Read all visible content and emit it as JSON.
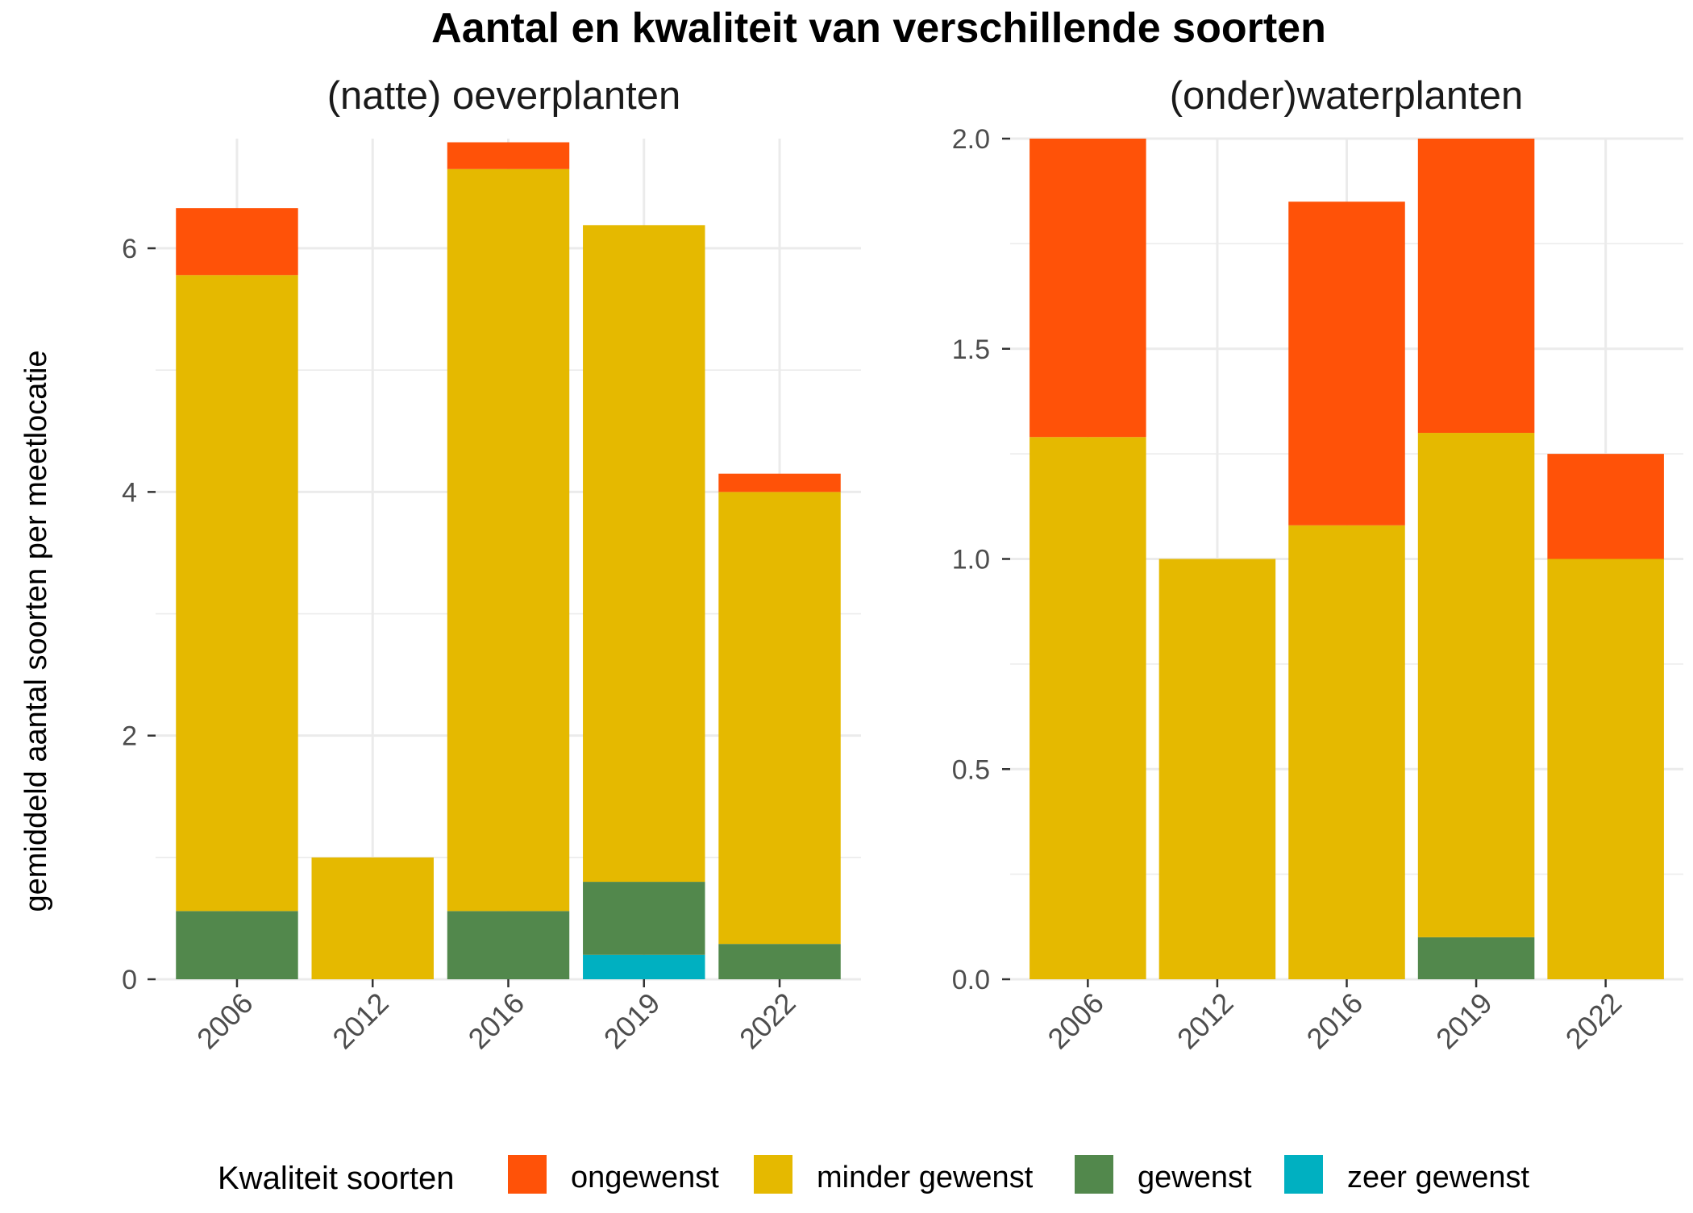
{
  "title": "Aantal en kwaliteit van verschillende soorten",
  "ylabel": "gemiddeld aantal soorten per meetlocatie",
  "legend": {
    "title": "Kwaliteit soorten",
    "position": "bottom",
    "items": [
      {
        "label": "ongewenst",
        "color": "#FF5208"
      },
      {
        "label": "minder gewenst",
        "color": "#E5B900"
      },
      {
        "label": "gewenst",
        "color": "#52884C"
      },
      {
        "label": "zeer gewenst",
        "color": "#00B0C1"
      }
    ]
  },
  "chart_data": [
    {
      "type": "bar",
      "stacked": true,
      "title": "(natte) oeverplanten",
      "categories": [
        "2006",
        "2012",
        "2016",
        "2019",
        "2022"
      ],
      "ylim": [
        0,
        6.9
      ],
      "yticks": [
        0,
        2,
        4,
        6
      ],
      "ytick_labels": [
        "0",
        "2",
        "4",
        "6"
      ],
      "grid": true,
      "series": [
        {
          "name": "zeer gewenst",
          "values": [
            0,
            0,
            0,
            0.2,
            0
          ]
        },
        {
          "name": "gewenst",
          "values": [
            0.56,
            0,
            0.56,
            0.6,
            0.29
          ]
        },
        {
          "name": "minder gewenst",
          "values": [
            5.22,
            1.0,
            6.09,
            5.39,
            3.71
          ]
        },
        {
          "name": "ongewenst",
          "values": [
            0.55,
            0,
            0.22,
            0,
            0.15
          ]
        }
      ]
    },
    {
      "type": "bar",
      "stacked": true,
      "title": "(onder)waterplanten",
      "categories": [
        "2006",
        "2012",
        "2016",
        "2019",
        "2022"
      ],
      "ylim": [
        0,
        2.0
      ],
      "yticks": [
        0,
        0.5,
        1.0,
        1.5,
        2.0
      ],
      "ytick_labels": [
        "0.0",
        "0.5",
        "1.0",
        "1.5",
        "2.0"
      ],
      "grid": true,
      "series": [
        {
          "name": "zeer gewenst",
          "values": [
            0,
            0,
            0,
            0,
            0
          ]
        },
        {
          "name": "gewenst",
          "values": [
            0,
            0,
            0,
            0.1,
            0
          ]
        },
        {
          "name": "minder gewenst",
          "values": [
            1.29,
            1.0,
            1.08,
            1.2,
            1.0
          ]
        },
        {
          "name": "ongewenst",
          "values": [
            0.71,
            0,
            0.77,
            0.7,
            0.25
          ]
        }
      ]
    }
  ]
}
